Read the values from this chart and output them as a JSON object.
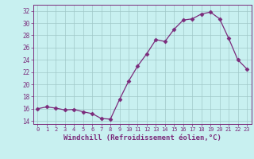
{
  "x": [
    0,
    1,
    2,
    3,
    4,
    5,
    6,
    7,
    8,
    9,
    10,
    11,
    12,
    13,
    14,
    15,
    16,
    17,
    18,
    19,
    20,
    21,
    22,
    23
  ],
  "y": [
    16.0,
    16.3,
    16.1,
    15.8,
    15.9,
    15.5,
    15.2,
    14.4,
    14.3,
    17.5,
    20.5,
    23.0,
    25.0,
    27.3,
    27.0,
    29.0,
    30.5,
    30.7,
    31.5,
    31.8,
    30.7,
    27.5,
    24.0,
    22.5
  ],
  "line_color": "#7b2b7b",
  "marker": "D",
  "marker_size": 2.5,
  "bg_color": "#c8f0f0",
  "grid_color": "#a0c8c8",
  "xlabel": "Windchill (Refroidissement éolien,°C)",
  "xlabel_fontsize": 6.5,
  "tick_color": "#7b2b7b",
  "ylim": [
    13.5,
    33
  ],
  "xlim": [
    -0.5,
    23.5
  ],
  "yticks": [
    14,
    16,
    18,
    20,
    22,
    24,
    26,
    28,
    30,
    32
  ],
  "xticks": [
    0,
    1,
    2,
    3,
    4,
    5,
    6,
    7,
    8,
    9,
    10,
    11,
    12,
    13,
    14,
    15,
    16,
    17,
    18,
    19,
    20,
    21,
    22,
    23
  ]
}
